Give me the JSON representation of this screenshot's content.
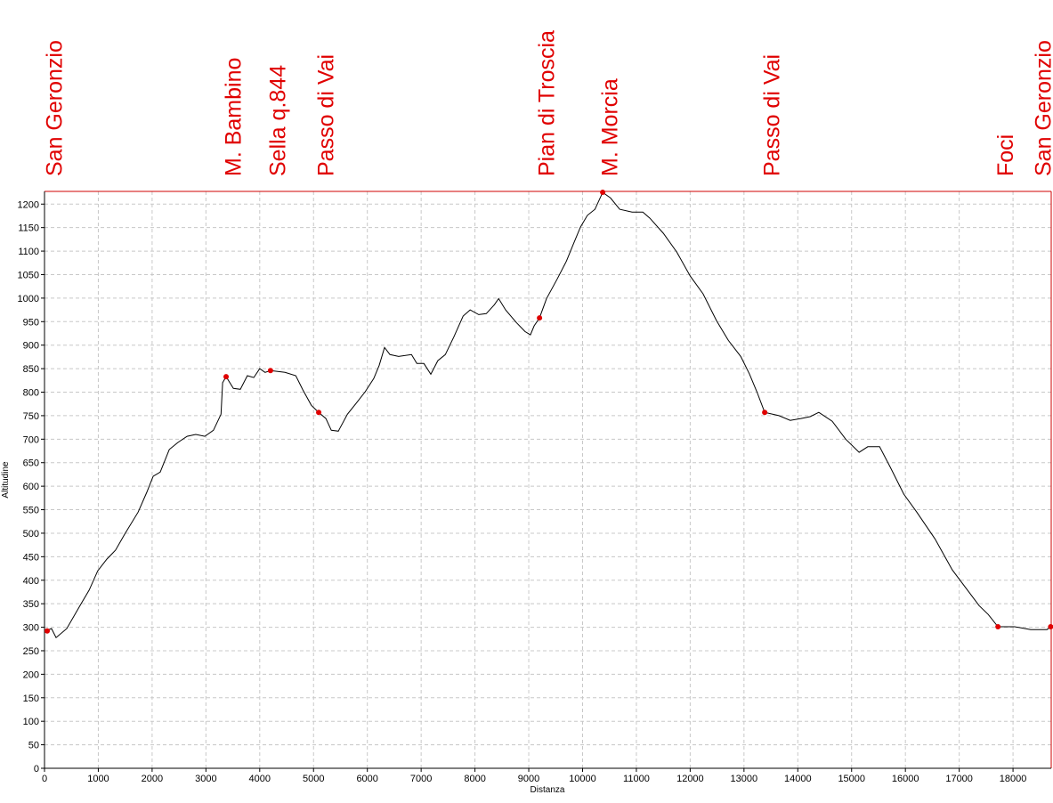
{
  "chart_data": {
    "type": "line",
    "xlabel": "Distanza",
    "ylabel": "Altitudine",
    "xlim": [
      0,
      18710
    ],
    "ylim": [
      0,
      1227
    ],
    "xticks": [
      0,
      1000,
      2000,
      3000,
      4000,
      5000,
      6000,
      7000,
      8000,
      9000,
      10000,
      11000,
      12000,
      13000,
      14000,
      15000,
      16000,
      17000,
      18000
    ],
    "yticks": [
      0,
      50,
      100,
      150,
      200,
      250,
      300,
      350,
      400,
      450,
      500,
      550,
      600,
      650,
      700,
      750,
      800,
      850,
      900,
      950,
      1000,
      1050,
      1100,
      1150,
      1200
    ],
    "grid": true,
    "x": [
      0,
      130,
      215,
      414,
      660,
      830,
      990,
      1160,
      1320,
      1490,
      1740,
      1900,
      2020,
      2150,
      2320,
      2480,
      2650,
      2810,
      2980,
      3140,
      3280,
      3310,
      3375,
      3510,
      3640,
      3770,
      3890,
      4000,
      4100,
      4200,
      4470,
      4670,
      4800,
      4960,
      5096,
      5230,
      5330,
      5460,
      5630,
      5790,
      5960,
      6120,
      6220,
      6320,
      6420,
      6580,
      6820,
      6920,
      7050,
      7180,
      7310,
      7450,
      7610,
      7780,
      7910,
      8070,
      8210,
      8360,
      8440,
      8570,
      8770,
      8930,
      9030,
      9100,
      9200,
      9330,
      9530,
      9700,
      9830,
      9960,
      10090,
      10230,
      10374,
      10520,
      10690,
      10920,
      11120,
      11250,
      11500,
      11750,
      12000,
      12240,
      12490,
      12710,
      12940,
      13100,
      13240,
      13385,
      13650,
      13860,
      14060,
      14230,
      14390,
      14640,
      14890,
      15140,
      15300,
      15520,
      15720,
      15970,
      16210,
      16550,
      16870,
      17120,
      17370,
      17540,
      17720,
      18030,
      18330,
      18630,
      18700
    ],
    "series": [
      {
        "color": "#000000",
        "values": [
          292,
          297,
          278,
          297,
          346,
          379,
          420,
          445,
          464,
          498,
          545,
          587,
          621,
          630,
          678,
          693,
          706,
          710,
          706,
          719,
          753,
          820,
          833,
          808,
          806,
          835,
          831,
          850,
          842,
          846,
          842,
          835,
          805,
          772,
          757,
          744,
          719,
          717,
          753,
          776,
          801,
          829,
          857,
          895,
          880,
          876,
          880,
          861,
          861,
          838,
          867,
          880,
          918,
          962,
          975,
          965,
          967,
          986,
          999,
          975,
          948,
          929,
          922,
          941,
          958,
          999,
          1041,
          1079,
          1115,
          1151,
          1176,
          1189,
          1225,
          1213,
          1189,
          1183,
          1183,
          1170,
          1138,
          1098,
          1047,
          1009,
          952,
          910,
          876,
          839,
          801,
          757,
          750,
          740,
          744,
          748,
          757,
          738,
          700,
          672,
          684,
          684,
          640,
          583,
          545,
          488,
          422,
          384,
          346,
          327,
          301,
          301,
          295,
          295,
          301
        ]
      }
    ],
    "markers": {
      "color": "#e00000",
      "labels": [
        "San Geronzio",
        "M. Bambino",
        "Sella q.844",
        "Passo di Vai",
        "Pian di Troscia",
        "M. Morcia",
        "Passo di Vai",
        "Foci",
        "San Geronzio"
      ],
      "x": [
        50,
        3375,
        4200,
        5096,
        9200,
        10374,
        13385,
        17720,
        18700
      ],
      "values": [
        292,
        833,
        846,
        757,
        958,
        1225,
        757,
        301,
        301
      ]
    }
  }
}
